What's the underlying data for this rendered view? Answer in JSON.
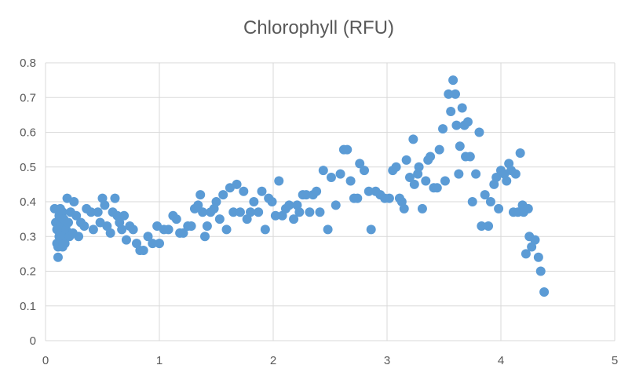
{
  "chart_data": {
    "type": "scatter",
    "title": "Chlorophyll (RFU)",
    "xlabel": "",
    "ylabel": "",
    "xlim": [
      0,
      5
    ],
    "ylim": [
      0,
      0.8
    ],
    "xticks": [
      "0",
      "1",
      "2",
      "3",
      "4",
      "5"
    ],
    "yticks": [
      "0",
      "0.1",
      "0.2",
      "0.3",
      "0.4",
      "0.5",
      "0.6",
      "0.7",
      "0.8"
    ],
    "grid": true,
    "legend": "none",
    "marker_color": "#5b9bd5",
    "series": [
      {
        "points": [
          [
            0.08,
            0.38
          ],
          [
            0.09,
            0.34
          ],
          [
            0.1,
            0.32
          ],
          [
            0.1,
            0.28
          ],
          [
            0.11,
            0.27
          ],
          [
            0.11,
            0.24
          ],
          [
            0.12,
            0.3
          ],
          [
            0.12,
            0.36
          ],
          [
            0.13,
            0.38
          ],
          [
            0.13,
            0.33
          ],
          [
            0.14,
            0.29
          ],
          [
            0.14,
            0.31
          ],
          [
            0.15,
            0.37
          ],
          [
            0.15,
            0.27
          ],
          [
            0.16,
            0.35
          ],
          [
            0.17,
            0.28
          ],
          [
            0.18,
            0.32
          ],
          [
            0.19,
            0.41
          ],
          [
            0.2,
            0.34
          ],
          [
            0.21,
            0.3
          ],
          [
            0.22,
            0.37
          ],
          [
            0.24,
            0.31
          ],
          [
            0.25,
            0.4
          ],
          [
            0.27,
            0.36
          ],
          [
            0.29,
            0.3
          ],
          [
            0.31,
            0.34
          ],
          [
            0.34,
            0.33
          ],
          [
            0.36,
            0.38
          ],
          [
            0.4,
            0.37
          ],
          [
            0.42,
            0.32
          ],
          [
            0.46,
            0.37
          ],
          [
            0.48,
            0.34
          ],
          [
            0.5,
            0.41
          ],
          [
            0.52,
            0.39
          ],
          [
            0.54,
            0.33
          ],
          [
            0.57,
            0.31
          ],
          [
            0.59,
            0.37
          ],
          [
            0.61,
            0.41
          ],
          [
            0.63,
            0.36
          ],
          [
            0.65,
            0.34
          ],
          [
            0.67,
            0.32
          ],
          [
            0.69,
            0.36
          ],
          [
            0.71,
            0.29
          ],
          [
            0.74,
            0.33
          ],
          [
            0.77,
            0.32
          ],
          [
            0.8,
            0.28
          ],
          [
            0.83,
            0.26
          ],
          [
            0.86,
            0.26
          ],
          [
            0.9,
            0.3
          ],
          [
            0.94,
            0.28
          ],
          [
            0.98,
            0.33
          ],
          [
            1.0,
            0.28
          ],
          [
            1.04,
            0.32
          ],
          [
            1.08,
            0.32
          ],
          [
            1.12,
            0.36
          ],
          [
            1.15,
            0.35
          ],
          [
            1.18,
            0.31
          ],
          [
            1.21,
            0.31
          ],
          [
            1.25,
            0.33
          ],
          [
            1.28,
            0.33
          ],
          [
            1.31,
            0.38
          ],
          [
            1.34,
            0.39
          ],
          [
            1.36,
            0.42
          ],
          [
            1.38,
            0.37
          ],
          [
            1.4,
            0.3
          ],
          [
            1.42,
            0.33
          ],
          [
            1.45,
            0.37
          ],
          [
            1.48,
            0.38
          ],
          [
            1.5,
            0.4
          ],
          [
            1.53,
            0.35
          ],
          [
            1.56,
            0.42
          ],
          [
            1.59,
            0.32
          ],
          [
            1.62,
            0.44
          ],
          [
            1.65,
            0.37
          ],
          [
            1.68,
            0.45
          ],
          [
            1.71,
            0.37
          ],
          [
            1.74,
            0.43
          ],
          [
            1.77,
            0.35
          ],
          [
            1.8,
            0.37
          ],
          [
            1.83,
            0.4
          ],
          [
            1.87,
            0.37
          ],
          [
            1.9,
            0.43
          ],
          [
            1.93,
            0.32
          ],
          [
            1.96,
            0.41
          ],
          [
            1.99,
            0.4
          ],
          [
            2.02,
            0.36
          ],
          [
            2.05,
            0.46
          ],
          [
            2.08,
            0.36
          ],
          [
            2.11,
            0.38
          ],
          [
            2.14,
            0.39
          ],
          [
            2.18,
            0.35
          ],
          [
            2.21,
            0.39
          ],
          [
            2.23,
            0.37
          ],
          [
            2.26,
            0.42
          ],
          [
            2.29,
            0.42
          ],
          [
            2.32,
            0.37
          ],
          [
            2.35,
            0.42
          ],
          [
            2.38,
            0.43
          ],
          [
            2.41,
            0.37
          ],
          [
            2.44,
            0.49
          ],
          [
            2.48,
            0.32
          ],
          [
            2.51,
            0.47
          ],
          [
            2.55,
            0.39
          ],
          [
            2.59,
            0.48
          ],
          [
            2.62,
            0.55
          ],
          [
            2.65,
            0.55
          ],
          [
            2.68,
            0.46
          ],
          [
            2.71,
            0.41
          ],
          [
            2.74,
            0.41
          ],
          [
            2.76,
            0.51
          ],
          [
            2.8,
            0.49
          ],
          [
            2.84,
            0.43
          ],
          [
            2.86,
            0.32
          ],
          [
            2.9,
            0.43
          ],
          [
            2.94,
            0.42
          ],
          [
            2.98,
            0.41
          ],
          [
            3.02,
            0.41
          ],
          [
            3.05,
            0.49
          ],
          [
            3.08,
            0.5
          ],
          [
            3.11,
            0.41
          ],
          [
            3.13,
            0.4
          ],
          [
            3.15,
            0.38
          ],
          [
            3.17,
            0.52
          ],
          [
            3.2,
            0.47
          ],
          [
            3.23,
            0.58
          ],
          [
            3.24,
            0.45
          ],
          [
            3.27,
            0.48
          ],
          [
            3.28,
            0.5
          ],
          [
            3.31,
            0.38
          ],
          [
            3.34,
            0.46
          ],
          [
            3.36,
            0.52
          ],
          [
            3.38,
            0.53
          ],
          [
            3.41,
            0.44
          ],
          [
            3.44,
            0.44
          ],
          [
            3.46,
            0.55
          ],
          [
            3.49,
            0.61
          ],
          [
            3.51,
            0.46
          ],
          [
            3.54,
            0.71
          ],
          [
            3.56,
            0.66
          ],
          [
            3.58,
            0.75
          ],
          [
            3.6,
            0.71
          ],
          [
            3.61,
            0.62
          ],
          [
            3.63,
            0.48
          ],
          [
            3.64,
            0.56
          ],
          [
            3.66,
            0.67
          ],
          [
            3.68,
            0.62
          ],
          [
            3.69,
            0.53
          ],
          [
            3.71,
            0.63
          ],
          [
            3.73,
            0.53
          ],
          [
            3.75,
            0.4
          ],
          [
            3.78,
            0.48
          ],
          [
            3.81,
            0.6
          ],
          [
            3.83,
            0.33
          ],
          [
            3.86,
            0.42
          ],
          [
            3.89,
            0.33
          ],
          [
            3.91,
            0.4
          ],
          [
            3.94,
            0.45
          ],
          [
            3.96,
            0.47
          ],
          [
            3.98,
            0.38
          ],
          [
            4.0,
            0.49
          ],
          [
            4.03,
            0.48
          ],
          [
            4.05,
            0.46
          ],
          [
            4.07,
            0.51
          ],
          [
            4.09,
            0.49
          ],
          [
            4.11,
            0.37
          ],
          [
            4.13,
            0.48
          ],
          [
            4.15,
            0.37
          ],
          [
            4.17,
            0.54
          ],
          [
            4.19,
            0.39
          ],
          [
            4.2,
            0.37
          ],
          [
            4.22,
            0.25
          ],
          [
            4.24,
            0.38
          ],
          [
            4.25,
            0.3
          ],
          [
            4.27,
            0.27
          ],
          [
            4.3,
            0.29
          ],
          [
            4.33,
            0.24
          ],
          [
            4.35,
            0.2
          ],
          [
            4.38,
            0.14
          ]
        ]
      }
    ]
  }
}
